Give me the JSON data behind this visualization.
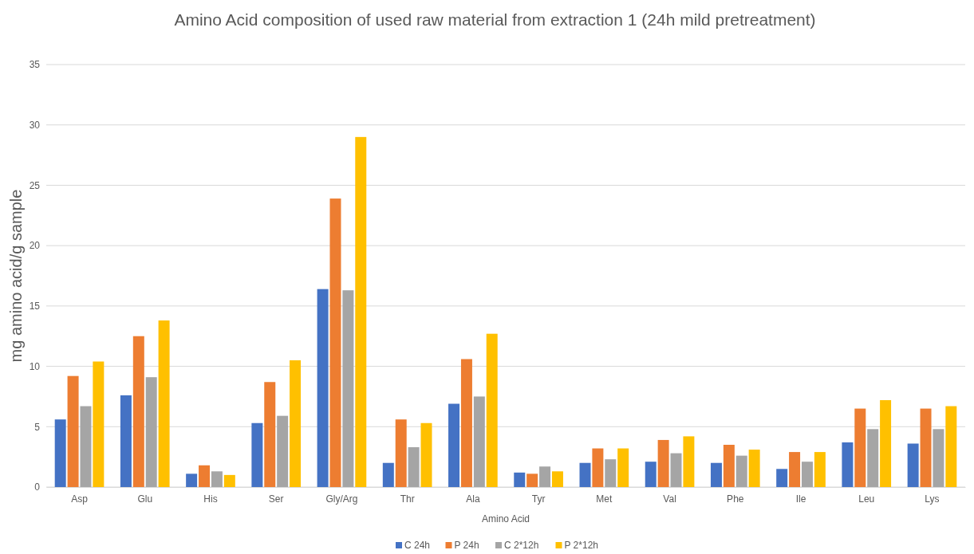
{
  "chart_data": {
    "type": "bar",
    "title": "Amino Acid composition of used raw material from extraction 1 (24h mild pretreatment)",
    "xlabel": "Amino Acid",
    "ylabel": "mg amino acid/g sample",
    "categories": [
      "Asp",
      "Glu",
      "His",
      "Ser",
      "Gly/Arg",
      "Thr",
      "Ala",
      "Tyr",
      "Met",
      "Val",
      "Phe",
      "Ile",
      "Leu",
      "Lys"
    ],
    "series": [
      {
        "name": "C 24h",
        "color": "#4472c4",
        "values": [
          5.6,
          7.6,
          1.1,
          5.3,
          16.4,
          2.0,
          6.9,
          1.2,
          2.0,
          2.1,
          2.0,
          1.5,
          3.7,
          3.6
        ]
      },
      {
        "name": "P 24h",
        "color": "#ed7d31",
        "values": [
          9.2,
          12.5,
          1.8,
          8.7,
          23.9,
          5.6,
          10.6,
          1.1,
          3.2,
          3.9,
          3.5,
          2.9,
          6.5,
          6.5
        ]
      },
      {
        "name": "C 2*12h",
        "color": "#a5a5a5",
        "values": [
          6.7,
          9.1,
          1.3,
          5.9,
          16.3,
          3.3,
          7.5,
          1.7,
          2.3,
          2.8,
          2.6,
          2.1,
          4.8,
          4.8
        ]
      },
      {
        "name": "P 2*12h",
        "color": "#ffc000",
        "values": [
          10.4,
          13.8,
          1.0,
          10.5,
          29.0,
          5.3,
          12.7,
          1.3,
          3.2,
          4.2,
          3.1,
          2.9,
          7.2,
          6.7
        ]
      }
    ],
    "ylim": [
      0,
      35
    ],
    "yticks": [
      0,
      5,
      10,
      15,
      20,
      25,
      30,
      35
    ],
    "grid": "y",
    "legend": "bottom"
  }
}
